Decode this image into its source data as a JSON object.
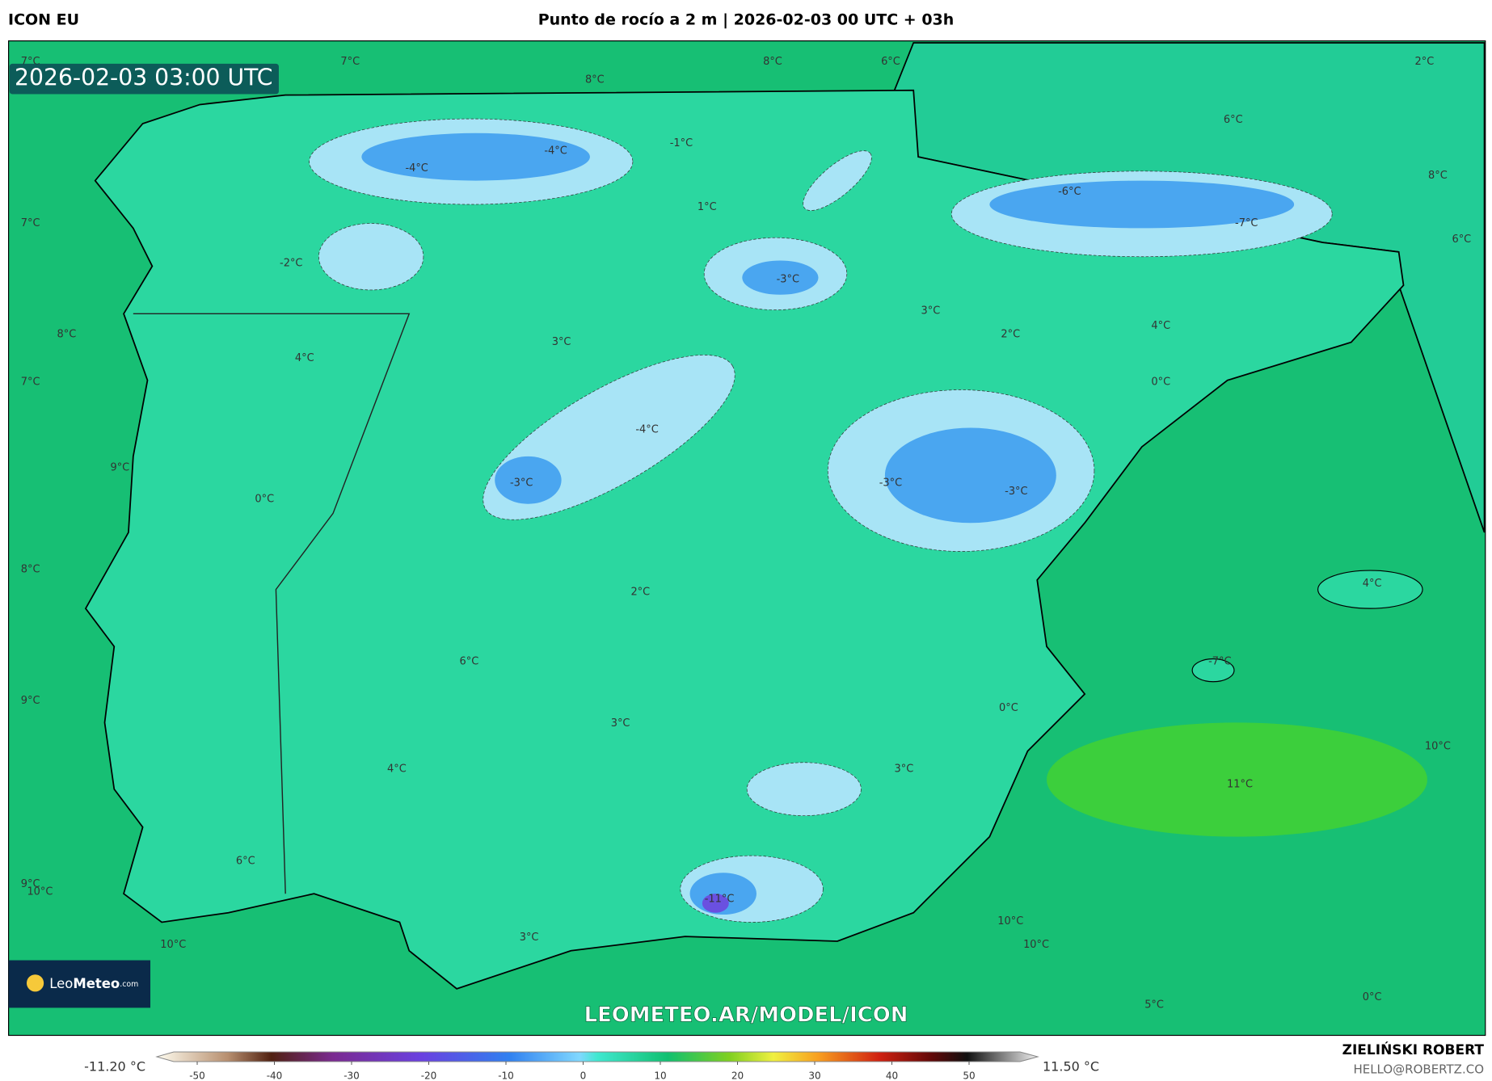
{
  "header": {
    "model": "ICON EU",
    "title": "Punto de rocío a 2 m | 2026-02-03 00 UTC + 03h"
  },
  "map": {
    "timestamp": "2026-02-03 03:00 UTC",
    "labels": [
      "7°C",
      "7°C",
      "8°C",
      "8°C",
      "6°C",
      "2°C",
      "6°C",
      "8°C",
      "6°C",
      "7°C",
      "-4°C",
      "-4°C",
      "-1°C",
      "1°C",
      "-2°C",
      "-6°C",
      "-7°C",
      "-3°C",
      "3°C",
      "2°C",
      "4°C",
      "0°C",
      "8°C",
      "7°C",
      "4°C",
      "3°C",
      "-4°C",
      "-3°C",
      "-3°C",
      "-3°C",
      "9°C",
      "0°C",
      "8°C",
      "2°C",
      "4°C",
      "6°C",
      "-7°C",
      "9°C",
      "0°C",
      "10°C",
      "3°C",
      "4°C",
      "11°C",
      "3°C",
      "6°C",
      "9°C",
      "10°C",
      "-11°C",
      "10°C",
      "10°C",
      "10°C",
      "3°C",
      "5°C",
      "0°C"
    ],
    "watermark": "LEOMETEO.AR/MODEL/ICON",
    "logo": {
      "name": "Leo",
      "name_bold": "Meteo",
      "suffix": ".com"
    }
  },
  "colorbar": {
    "min_label": "-11.20 °C",
    "max_label": "11.50 °C",
    "ticks": [
      -50,
      -40,
      -30,
      -20,
      -10,
      0,
      10,
      20,
      30,
      40,
      50
    ]
  },
  "footer": {
    "author": "ZIELIŃSKI ROBERT",
    "email": "HELLO@ROBERTZ.CO"
  }
}
